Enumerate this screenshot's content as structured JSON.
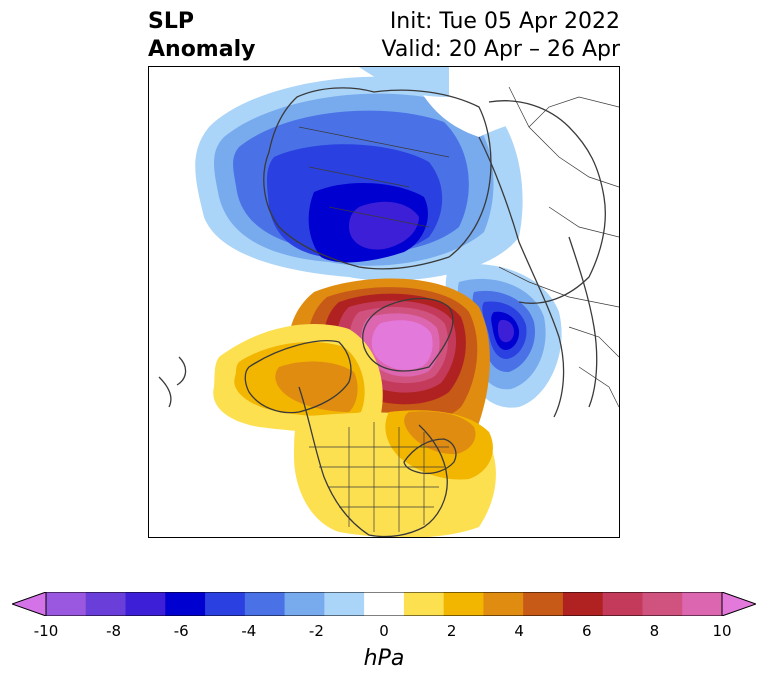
{
  "title": {
    "variable_line1": "SLP",
    "variable_line2": "Anomaly",
    "init": "Init: Tue 05 Apr 2022",
    "valid": "Valid: 20 Apr – 26 Apr"
  },
  "colorbar": {
    "unit": "hPa",
    "tick_labels": [
      "-10",
      "-8",
      "-6",
      "-4",
      "-2",
      "0",
      "2",
      "4",
      "6",
      "8",
      "10"
    ],
    "colors": [
      "#d473e8",
      "#9a57e0",
      "#6a3ed8",
      "#3c1fd6",
      "#0000d0",
      "#2a40e0",
      "#4a72e6",
      "#78aaee",
      "#aad4f8",
      "#ffffff",
      "#fde050",
      "#f2b500",
      "#e08c10",
      "#c85a18",
      "#b02222",
      "#c43a5a",
      "#d0527e",
      "#dc66b0",
      "#e479dc"
    ]
  },
  "map": {
    "region": "Northern Hemisphere polar projection",
    "features": [
      {
        "sign": "negative",
        "peak_hPa": -6,
        "location": "Arctic / northern Siberia"
      },
      {
        "sign": "negative",
        "peak_hPa": -6,
        "location": "Northeast Atlantic / Scandinavia"
      },
      {
        "sign": "positive",
        "peak_hPa": 10,
        "location": "Greenland / Canadian Arctic"
      },
      {
        "sign": "positive",
        "peak_hPa": 2,
        "location": "Northeast Pacific / Alaska"
      },
      {
        "sign": "positive",
        "peak_hPa": 2,
        "location": "Eastern United States"
      }
    ]
  }
}
